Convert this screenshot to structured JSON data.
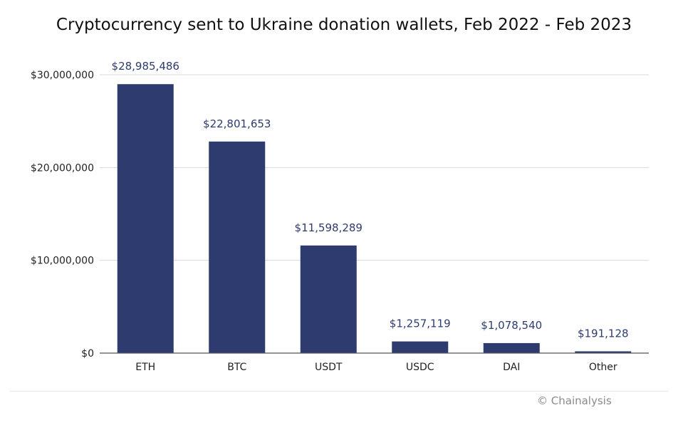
{
  "chart_data": {
    "type": "bar",
    "title": "Cryptocurrency sent to Ukraine donation wallets, Feb 2022 - Feb 2023",
    "categories": [
      "ETH",
      "BTC",
      "USDT",
      "USDC",
      "DAI",
      "Other"
    ],
    "values": [
      28985486,
      22801653,
      11598289,
      1257119,
      1078540,
      191128
    ],
    "data_labels": [
      "$28,985,486",
      "$22,801,653",
      "$11,598,289",
      "$1,257,119",
      "$1,078,540",
      "$191,128"
    ],
    "xlabel": "",
    "ylabel": "",
    "ylim": [
      0,
      30000000
    ],
    "yticks": [
      0,
      10000000,
      20000000,
      30000000
    ],
    "ytick_labels": [
      "$0",
      "$10,000,000",
      "$20,000,000",
      "$30,000,000"
    ],
    "grid": true,
    "legend": "none",
    "colors": {
      "bar": "#2e3b6e",
      "label": "#2e3b6e",
      "grid": "#d9d9d9",
      "axis": "#555555"
    }
  },
  "footer": {
    "credit": "© Chainalysis"
  }
}
